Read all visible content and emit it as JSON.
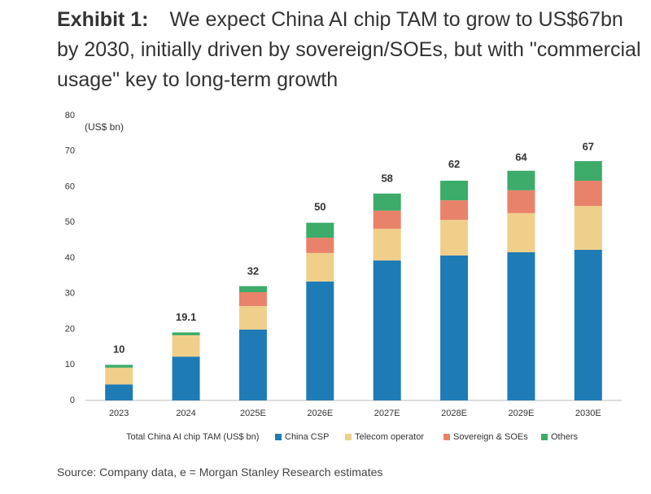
{
  "chart_data": {
    "type": "stacked_bar",
    "title_prefix": "Exhibit 1:",
    "title": "We expect China AI chip TAM to grow to US$67bn by 2030, initially driven by sovereign/SOEs, but with \"commercial usage\" key to long-term growth",
    "y_unit_label": "(US$ bn)",
    "source": "Source: Company data, e = Morgan Stanley Research estimates",
    "categories": [
      "2023",
      "2024",
      "2025E",
      "2026E",
      "2027E",
      "2028E",
      "2029E",
      "2030E"
    ],
    "totals": {
      "name": "Total China AI chip TAM (US$ bn)",
      "values": [
        10,
        19.1,
        32,
        50,
        58,
        62,
        64,
        67
      ]
    },
    "series": [
      {
        "name": "China CSP",
        "color": "#1f7bb6",
        "values": [
          4.5,
          12.3,
          19.9,
          33.4,
          39.3,
          40.7,
          41.6,
          42.3
        ]
      },
      {
        "name": "Telecom operator",
        "color": "#f0cf8b",
        "values": [
          4.7,
          6,
          6.6,
          8,
          8.9,
          10,
          11,
          12.3
        ]
      },
      {
        "name": "Sovereign & SOEs",
        "color": "#e9826a",
        "values": [
          0,
          0,
          3.9,
          4.3,
          5.1,
          5.5,
          6.4,
          7.1
        ]
      },
      {
        "name": "Others",
        "color": "#3dab6a",
        "values": [
          0.8,
          0.8,
          1.7,
          4.2,
          4.8,
          5.5,
          5.5,
          5.5
        ]
      }
    ],
    "ylim": [
      0,
      80
    ],
    "yticks": [
      0,
      10,
      20,
      30,
      40,
      50,
      60,
      70,
      80
    ]
  }
}
